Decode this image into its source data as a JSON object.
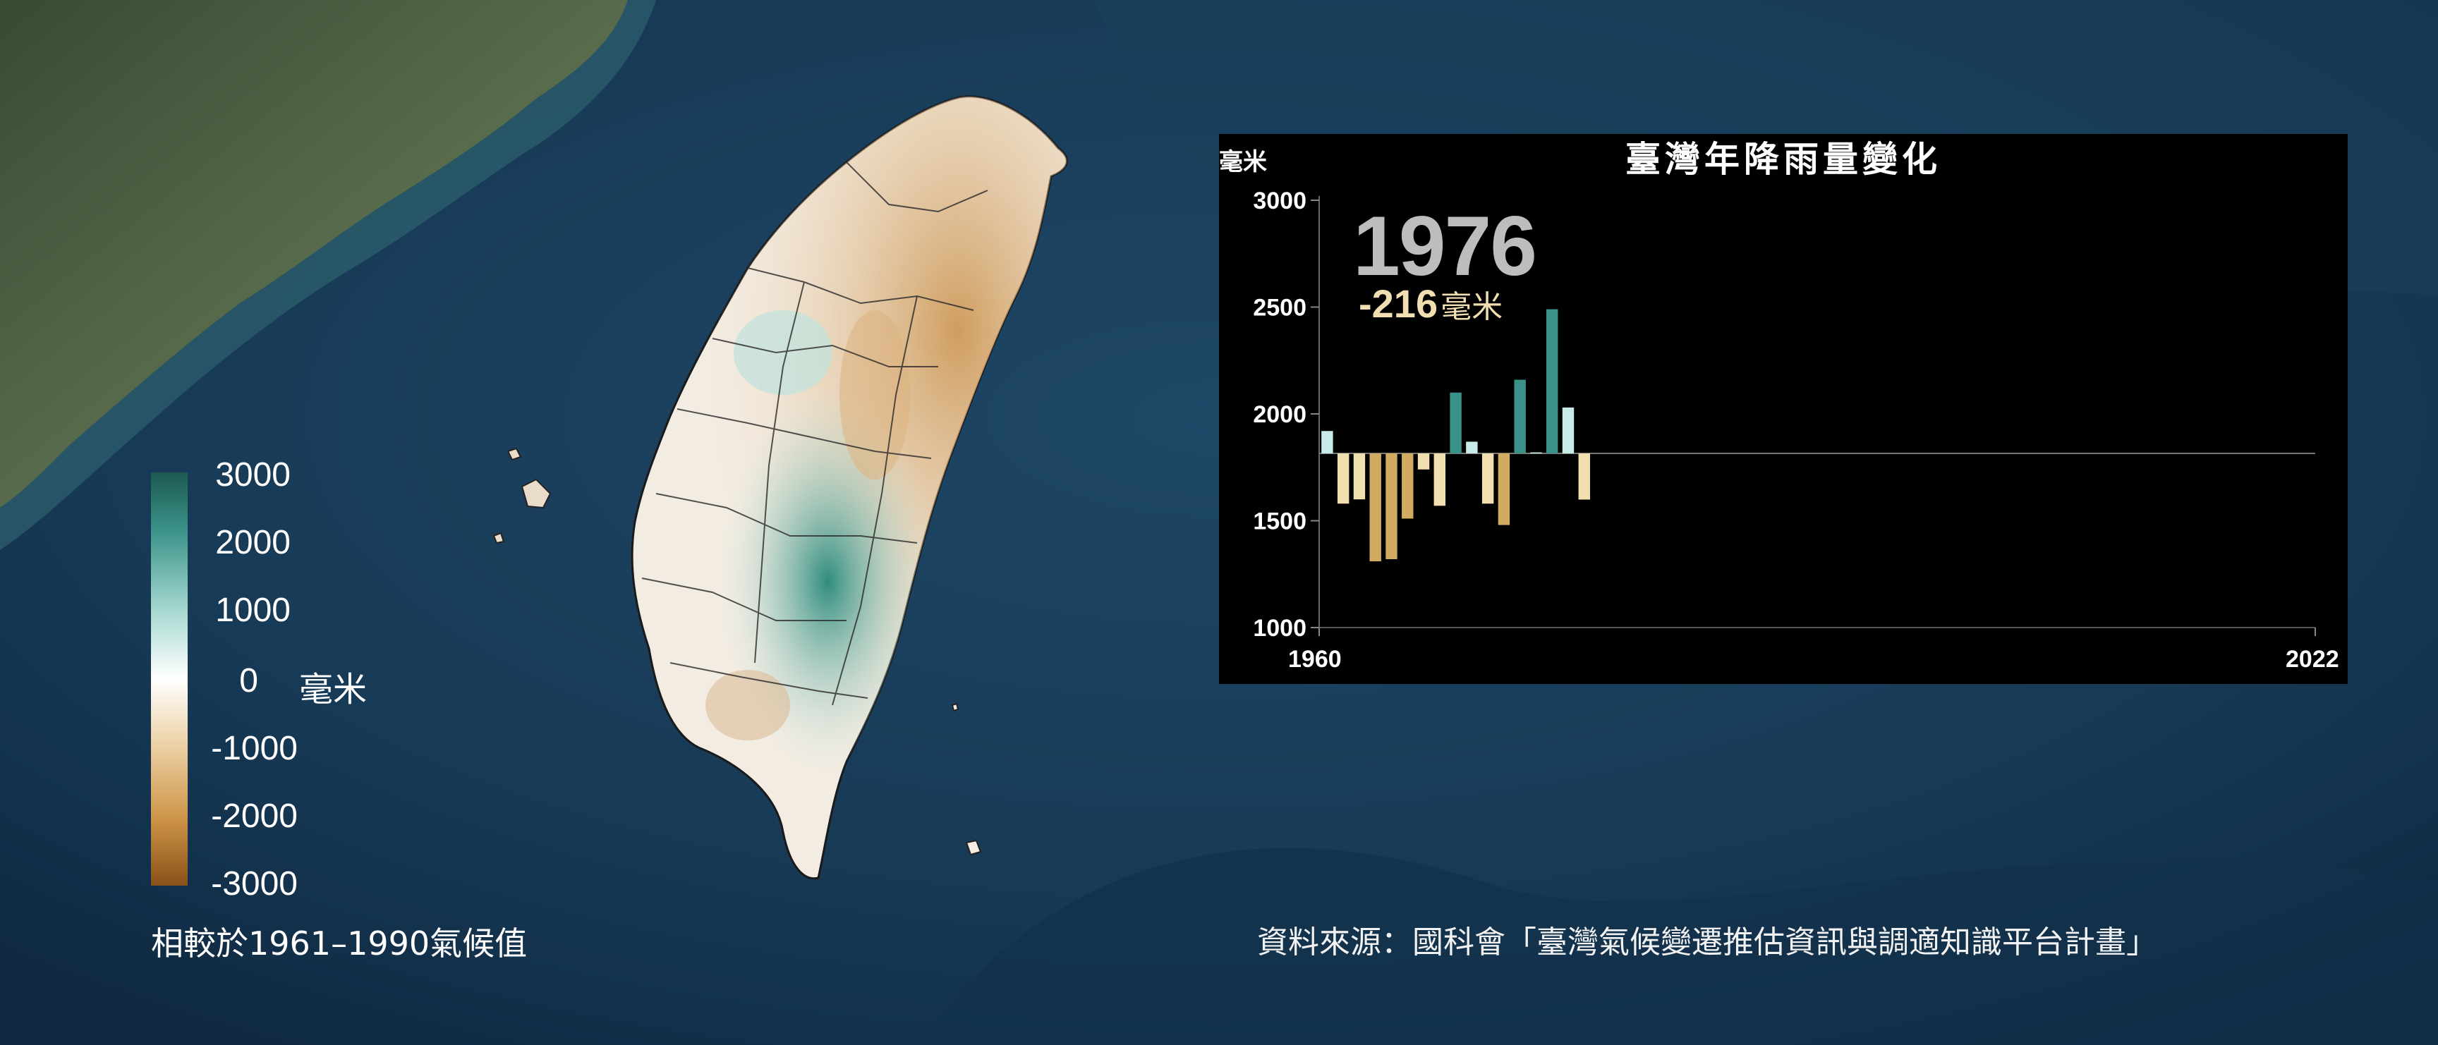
{
  "background": {
    "sea_color": "#16324a",
    "land_color_mainland": "#4e6148"
  },
  "map_legend": {
    "ticks": [
      "3000",
      "2000",
      "1000",
      "0",
      "-1000",
      "-2000",
      "-3000"
    ],
    "unit": "毫米",
    "note": "相較於1961–1990氣候值",
    "colors": {
      "positive": "#1e5a52",
      "zero": "#ffffff",
      "negative": "#8a5019"
    }
  },
  "chart": {
    "title": "臺灣年降雨量變化",
    "y_unit": "毫米",
    "current_year": "1976",
    "current_anomaly": "-216",
    "anomaly_unit": "毫米"
  },
  "source": "資料來源：國科會「臺灣氣候變遷推估資訊與調適知識平台計畫」",
  "chart_data": {
    "type": "bar",
    "title": "臺灣年降雨量變化",
    "ylabel": "毫米",
    "xlim": [
      1960,
      2022
    ],
    "ylim": [
      1000,
      3000
    ],
    "yticks": [
      3000,
      2500,
      2000,
      1500,
      1000
    ],
    "xtick_labels": [
      "1960",
      "2022"
    ],
    "baseline": 1815,
    "x": [
      1960,
      1961,
      1962,
      1963,
      1964,
      1965,
      1966,
      1967,
      1968,
      1969,
      1970,
      1971,
      1972,
      1973,
      1974,
      1975,
      1976
    ],
    "values": [
      1920,
      1580,
      1600,
      1310,
      1320,
      1510,
      1740,
      1570,
      2100,
      1870,
      1580,
      1480,
      2160,
      1820,
      2490,
      2030,
      1599
    ],
    "colors": {
      "wet_strong": "#3a9288",
      "wet_light": "#c8ebe8",
      "dry_light": "#f2dfb0",
      "dry_strong": "#d2ab62"
    },
    "grid": false
  }
}
